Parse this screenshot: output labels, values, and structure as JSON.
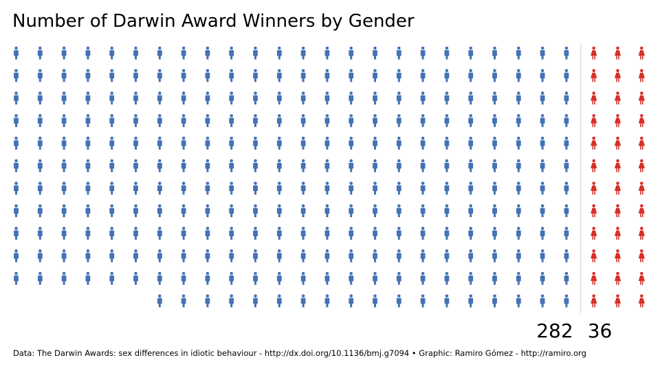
{
  "title": "Number of Darwin Award Winners by Gender",
  "footer": "Data: The Darwin Awards: sex differences in idiotic behaviour - http://dx.doi.org/10.1136/bmj.g7094 • Graphic: Ramiro Gómez - http://ramiro.org",
  "colors": {
    "male": "#4472b3",
    "female": "#d62f27",
    "divider": "#cccccc"
  },
  "chart_data": {
    "type": "pictogram",
    "series": [
      {
        "name": "",
        "gender": "male",
        "icon": "male-person-icon",
        "value": 282
      },
      {
        "name": "",
        "gender": "female",
        "icon": "female-person-icon",
        "value": 36
      }
    ],
    "labels": [
      "282",
      "36"
    ]
  }
}
